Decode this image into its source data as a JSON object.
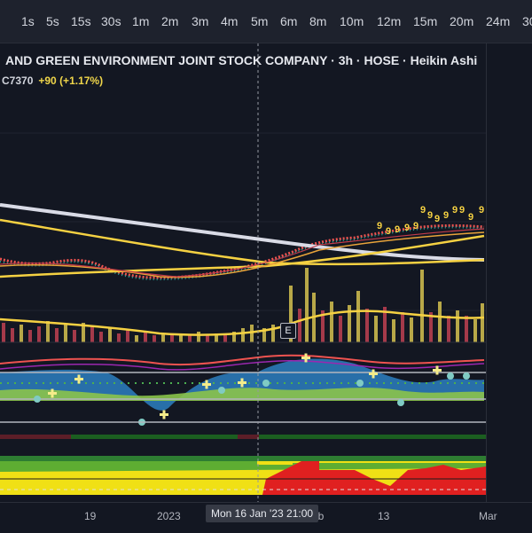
{
  "toolbar": {
    "timeframes": [
      "1s",
      "5s",
      "15s",
      "30s",
      "1m",
      "2m",
      "3m",
      "4m",
      "5m",
      "6m",
      "8m",
      "10m",
      "12m",
      "15m",
      "20m",
      "24m",
      "30"
    ]
  },
  "chart": {
    "title": "AND GREEN ENVIRONMENT JOINT STOCK COMPANY · 3h · HOSE · Heikin Ashi",
    "symbol_price": "C7370",
    "change": "+90 (+1.17%)",
    "event_marker": "E",
    "nine_labels": [
      "9",
      "9",
      "9",
      "9",
      "9",
      "9",
      "9",
      "9",
      "9",
      "9",
      "9",
      "9",
      "9",
      "9",
      "9",
      "9",
      "9",
      "9",
      "9",
      "9"
    ],
    "colors": {
      "up": "#26a69a",
      "down": "#ef5350",
      "ma_yellow": "#f5d142",
      "ma_white": "#d9dbe6",
      "volume_up": "#b8a848",
      "volume_down": "#a53a4a"
    }
  },
  "xaxis": {
    "labels": [
      "19",
      "2023",
      "eb",
      "13",
      "Mar"
    ],
    "crosshair_label": "Mon 16 Jan '23   21:00"
  }
}
